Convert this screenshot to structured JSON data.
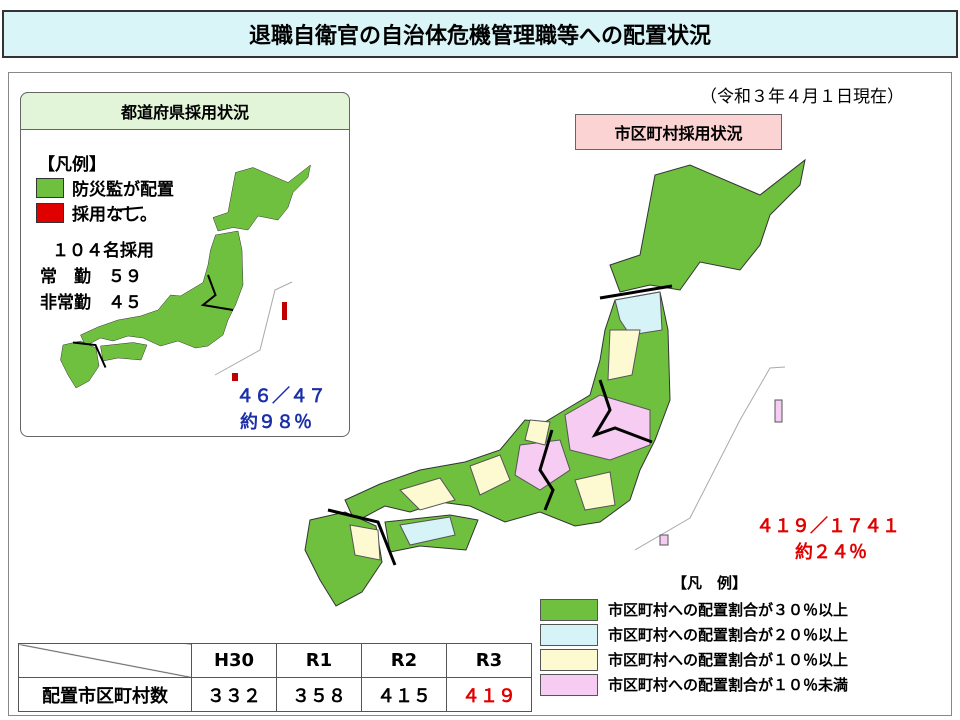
{
  "title": "退職自衛官の自治体危機管理職等への配置状況",
  "date_note": "（令和３年４月１日現在）",
  "prefecture_panel": {
    "heading": "都道府県採用状況",
    "legend_title": "【凡例】",
    "legend": [
      {
        "label": "防災監が配置",
        "color": "#70c040"
      },
      {
        "label": "採用なし。",
        "color": "#e00000"
      }
    ],
    "stats": [
      "１０４名採用",
      "常　勤　５９",
      "非常勤　４５"
    ],
    "ratio": "４６／４７",
    "percent": "約９８％"
  },
  "municipal_panel": {
    "heading": "市区町村採用状況",
    "ratio": "４１９／１７４１",
    "percent": "約２４％",
    "legend_title": "【凡　例】",
    "legend": [
      {
        "label": "市区町村への配置割合が３０％以上",
        "color": "#70c040"
      },
      {
        "label": "市区町村への配置割合が２０％以上",
        "color": "#d6f4f8"
      },
      {
        "label": "市区町村への配置割合が１０％以上",
        "color": "#fdfad2"
      },
      {
        "label": "市区町村への配置割合が１０％未満",
        "color": "#f6ccf2"
      }
    ]
  },
  "table": {
    "header": [
      "H30",
      "R1",
      "R2",
      "R3"
    ],
    "row_label": "配置市区町村数",
    "values": [
      "３３２",
      "３５８",
      "４１５",
      "４１９"
    ]
  }
}
